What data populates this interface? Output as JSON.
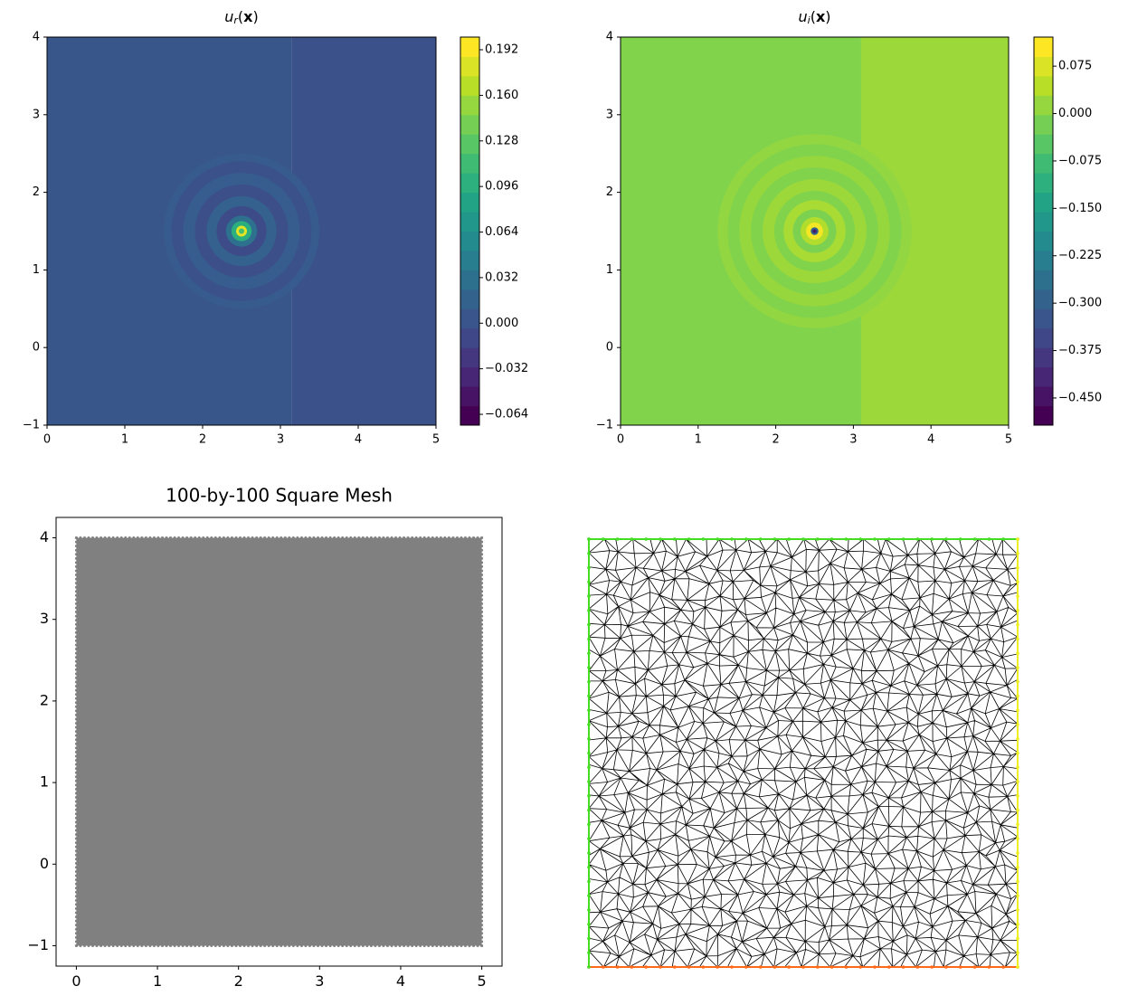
{
  "chart_data": [
    {
      "type": "contour",
      "title": [
        "u",
        "r",
        "(",
        "x",
        ")"
      ],
      "xlim": [
        0,
        5
      ],
      "ylim": [
        -1,
        4
      ],
      "xticks": [
        0,
        1,
        2,
        3,
        4,
        5
      ],
      "yticks": [
        {
          "value": -1,
          "label": "−1"
        },
        0,
        1,
        2,
        3,
        4
      ],
      "colormap": "viridis",
      "clim": [
        -0.0716,
        0.2009
      ],
      "colorbar_ticks": [
        0.192,
        {
          "value": 0.16,
          "label": "0.160"
        },
        0.128,
        0.096,
        0.064,
        0.032,
        {
          "value": 0,
          "label": "0.000"
        },
        {
          "value": -0.032,
          "label": "−0.032"
        },
        {
          "value": -0.064,
          "label": "−0.064"
        }
      ],
      "background": [
        {
          "x_range": [
            0,
            3.15
          ],
          "value": 0.001
        },
        {
          "x_range": [
            3.15,
            5
          ],
          "value": -0.004
        }
      ],
      "center": [
        2.5,
        1.5
      ],
      "rings": {
        "radii": [
          1.0,
          0.9,
          0.75,
          0.6,
          0.45,
          0.32,
          0.2,
          0.13,
          0.07,
          0.035
        ],
        "values": [
          0.006,
          -0.004,
          0.008,
          -0.006,
          0.012,
          -0.01,
          0.03,
          0.1,
          0.19,
          0.12
        ]
      }
    },
    {
      "type": "contour",
      "title": [
        "u",
        "i",
        "(",
        "x",
        ")"
      ],
      "xlim": [
        0,
        5
      ],
      "ylim": [
        -1,
        4
      ],
      "xticks": [
        0,
        1,
        2,
        3,
        4,
        5
      ],
      "yticks": [
        {
          "value": -1,
          "label": "−1"
        },
        0,
        1,
        2,
        3,
        4
      ],
      "colormap": "viridis",
      "clim": [
        -0.493,
        0.121
      ],
      "colorbar_ticks": [
        0.075,
        {
          "value": 0,
          "label": "0.000"
        },
        {
          "value": -0.075,
          "label": "−0.075"
        },
        {
          "value": -0.15,
          "label": "−0.150"
        },
        {
          "value": -0.225,
          "label": "−0.225"
        },
        {
          "value": -0.3,
          "label": "−0.300"
        },
        {
          "value": -0.375,
          "label": "−0.375"
        },
        {
          "value": -0.45,
          "label": "−0.450"
        }
      ],
      "background": [
        {
          "x_range": [
            0,
            3.1
          ],
          "value": 0.005
        },
        {
          "x_range": [
            3.1,
            5
          ],
          "value": 0.03
        }
      ],
      "center": [
        2.5,
        1.5
      ],
      "rings": {
        "radii": [
          1.25,
          1.12,
          0.97,
          0.82,
          0.67,
          0.52,
          0.4,
          0.28,
          0.18,
          0.11,
          0.05,
          0.025
        ],
        "values": [
          0.02,
          0.005,
          0.025,
          0.005,
          0.03,
          0.005,
          0.04,
          0.0,
          0.05,
          0.11,
          -0.3,
          -0.45
        ]
      }
    },
    {
      "type": "scatter",
      "title": "100-by-100 Square Mesh",
      "xlim": [
        -0.25,
        5.25
      ],
      "ylim": [
        -1.25,
        4.25
      ],
      "xticks": [
        0,
        1,
        2,
        3,
        4,
        5
      ],
      "yticks": [
        {
          "value": -1,
          "label": "−1"
        },
        0,
        1,
        2,
        3,
        4
      ],
      "color": "#808080",
      "points_per_side": 100,
      "x_range": [
        0,
        5
      ],
      "y_range": [
        -1,
        4
      ]
    },
    {
      "type": "mesh",
      "divisions": 30,
      "edge_color": "#000000",
      "boundary_colors": {
        "left": "#44dd22",
        "top": "#44dd22",
        "right": "#eeee22",
        "bottom": "#ff6a1a"
      }
    }
  ]
}
